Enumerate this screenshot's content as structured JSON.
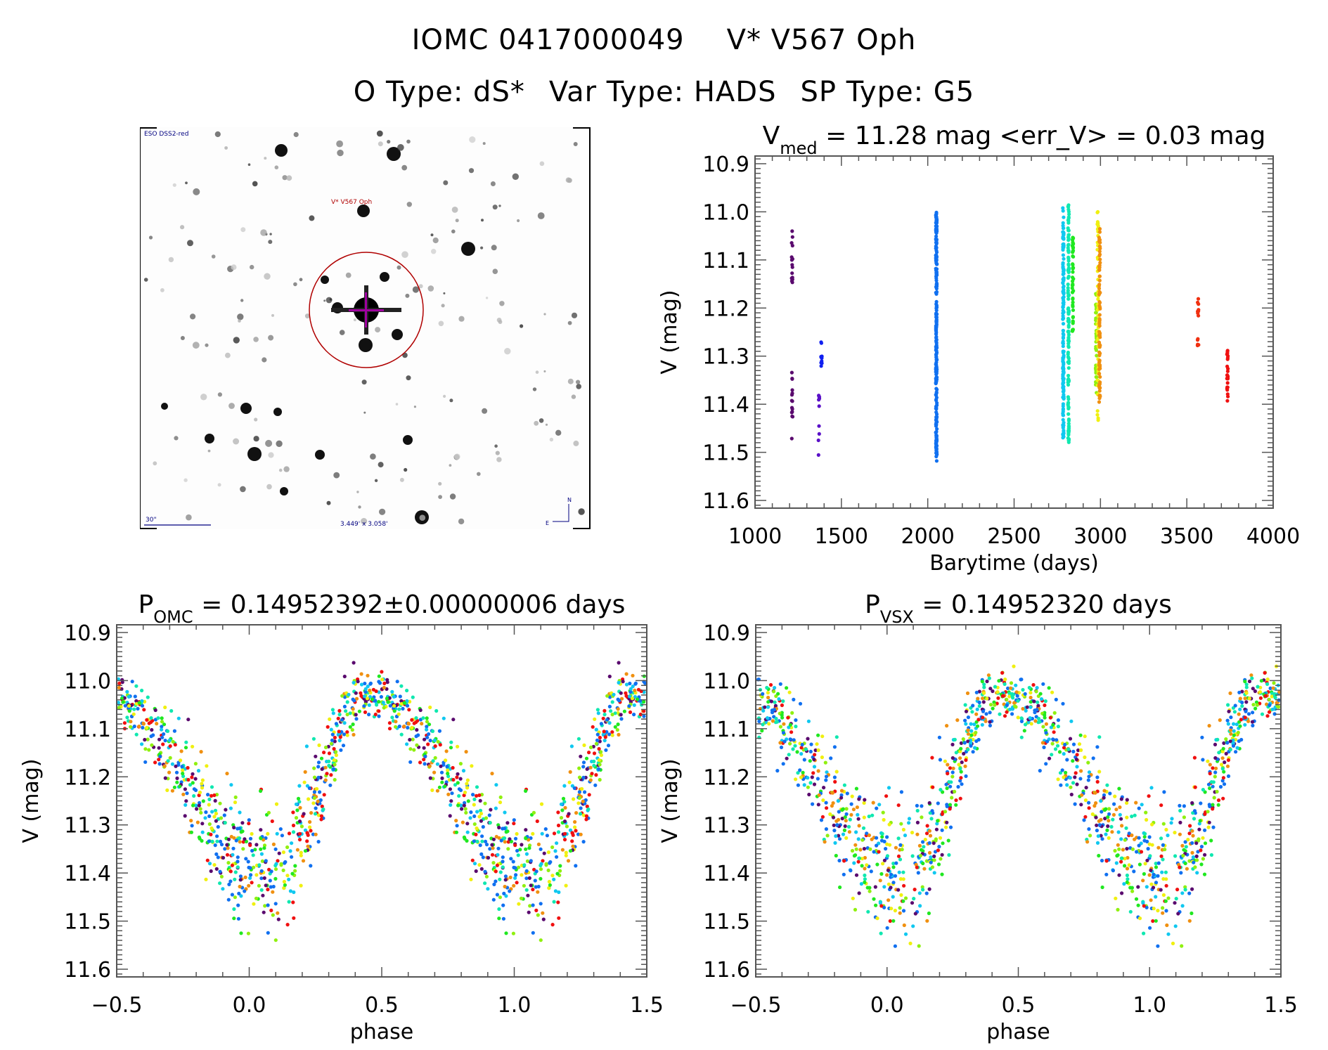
{
  "header": {
    "line1": [
      "IOMC 0417000049",
      "V* V567 Oph"
    ],
    "line2": [
      "O Type: dS*",
      "Var Type: HADS",
      "SP Type: G5"
    ]
  },
  "finder_chart": {
    "survey_label": "ESO DSS2-red",
    "target_label": "V* V567 Oph",
    "scale_label": "30\"",
    "fov_label": "3.449' x 3.058'",
    "north_label": "N",
    "east_label": "E",
    "colors": {
      "label": "#000080",
      "target_circle": "#b00000",
      "crosshair": "#a000a0"
    }
  },
  "chart_data": [
    {
      "id": "lightcurve",
      "type": "scatter",
      "title_main": "V",
      "title_sub": "med",
      "title_rest": " = 11.28 mag <err_V> = 0.03 mag",
      "xlabel": "Barytime (days)",
      "ylabel": "V (mag)",
      "xlim": [
        1000,
        4000
      ],
      "ylim": [
        11.616,
        10.884
      ],
      "y_inverted": true,
      "xticks": [
        1000,
        1500,
        2000,
        2500,
        3000,
        3500,
        4000
      ],
      "xtick_labels": [
        "1000",
        "1500",
        "2000",
        "2500",
        "3000",
        "3500",
        "4000"
      ],
      "yticks": [
        10.9,
        11.0,
        11.1,
        11.2,
        11.3,
        11.4,
        11.5,
        11.6
      ],
      "ytick_labels": [
        "10.9",
        "11.0",
        "11.1",
        "11.2",
        "11.3",
        "11.4",
        "11.5",
        "11.6"
      ],
      "groups": [
        {
          "t": 1215,
          "color": "#5a0a6e",
          "v_ranges": [
            [
              11.04,
              11.15
            ],
            [
              11.33,
              11.49
            ]
          ],
          "n": 30
        },
        {
          "t": 1370,
          "color": "#5a10c8",
          "v_ranges": [
            [
              11.38,
              11.52
            ]
          ],
          "n": 10
        },
        {
          "t": 1385,
          "color": "#1020f0",
          "v_ranges": [
            [
              11.27,
              11.33
            ]
          ],
          "n": 10
        },
        {
          "t": 2050,
          "color": "#1070f0",
          "v_ranges": [
            [
              11.0,
              11.52
            ]
          ],
          "n": 260
        },
        {
          "t": 2785,
          "color": "#10c8f0",
          "v_ranges": [
            [
              10.99,
              11.47
            ]
          ],
          "n": 160
        },
        {
          "t": 2815,
          "color": "#10e8b0",
          "v_ranges": [
            [
              10.98,
              11.49
            ]
          ],
          "n": 120
        },
        {
          "t": 2840,
          "color": "#20e820",
          "v_ranges": [
            [
              11.05,
              11.25
            ]
          ],
          "n": 50
        },
        {
          "t": 2975,
          "color": "#90f010",
          "v_ranges": [
            [
              11.17,
              11.38
            ]
          ],
          "n": 40
        },
        {
          "t": 2985,
          "color": "#f0f010",
          "v_ranges": [
            [
              11.0,
              11.44
            ]
          ],
          "n": 60
        },
        {
          "t": 2995,
          "color": "#f09010",
          "v_ranges": [
            [
              11.03,
              11.4
            ]
          ],
          "n": 80
        },
        {
          "t": 3565,
          "color": "#f03010",
          "v_ranges": [
            [
              11.18,
              11.28
            ]
          ],
          "n": 14
        },
        {
          "t": 3735,
          "color": "#f01010",
          "v_ranges": [
            [
              11.28,
              11.4
            ]
          ],
          "n": 26
        }
      ]
    },
    {
      "id": "phase_omc",
      "type": "scatter",
      "title_main": "P",
      "title_sub": "OMC",
      "title_rest": " = 0.14952392±0.00000006 days",
      "xlabel": "phase",
      "ylabel": "V (mag)",
      "xlim": [
        -0.5,
        1.5
      ],
      "ylim": [
        11.616,
        10.884
      ],
      "y_inverted": true,
      "xticks": [
        -0.5,
        0.0,
        0.5,
        1.0,
        1.5
      ],
      "xtick_labels": [
        "−0.5",
        "0.0",
        "0.5",
        "1.0",
        "1.5"
      ],
      "yticks": [
        10.9,
        11.0,
        11.1,
        11.2,
        11.3,
        11.4,
        11.5,
        11.6
      ],
      "ytick_labels": [
        "10.9",
        "11.0",
        "11.1",
        "11.2",
        "11.3",
        "11.4",
        "11.5",
        "11.6"
      ],
      "curve": {
        "max_light_phase": 0.45,
        "v_max": 11.03,
        "min_light_phase": 0.08,
        "v_min": 11.38,
        "scatter_mag": 0.05
      },
      "points_per_cycle": 700,
      "phase_shift": 0.0
    },
    {
      "id": "phase_vsx",
      "type": "scatter",
      "title_main": "P",
      "title_sub": "VSX",
      "title_rest": " = 0.14952320 days",
      "xlabel": "phase",
      "ylabel": "V (mag)",
      "xlim": [
        -0.5,
        1.5
      ],
      "ylim": [
        11.616,
        10.884
      ],
      "y_inverted": true,
      "xticks": [
        -0.5,
        0.0,
        0.5,
        1.0,
        1.5
      ],
      "xtick_labels": [
        "−0.5",
        "0.0",
        "0.5",
        "1.0",
        "1.5"
      ],
      "yticks": [
        10.9,
        11.0,
        11.1,
        11.2,
        11.3,
        11.4,
        11.5,
        11.6
      ],
      "ytick_labels": [
        "10.9",
        "11.0",
        "11.1",
        "11.2",
        "11.3",
        "11.4",
        "11.5",
        "11.6"
      ],
      "curve": {
        "max_light_phase": 0.44,
        "v_max": 11.03,
        "min_light_phase": 0.08,
        "v_min": 11.38,
        "scatter_mag": 0.05
      },
      "points_per_cycle": 700,
      "phase_shift": -0.01
    }
  ],
  "palette": [
    "#5a0a6e",
    "#1070f0",
    "#1070f0",
    "#10c8f0",
    "#10e8b0",
    "#20e820",
    "#90f010",
    "#f0f010",
    "#f09010",
    "#f01010"
  ]
}
